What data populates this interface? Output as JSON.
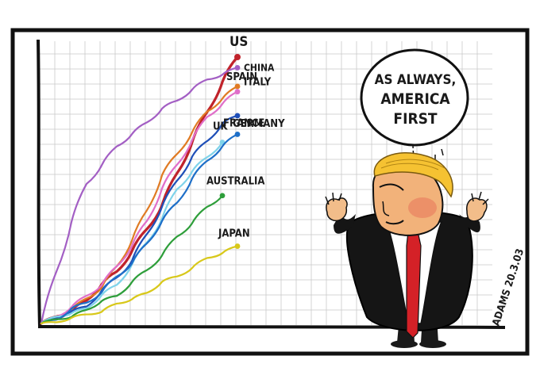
{
  "chart_data": {
    "type": "line",
    "title": "",
    "xlabel": "",
    "ylabel": "",
    "grid": true,
    "legend": "none (series labelled at line ends)",
    "series": [
      {
        "name": "US",
        "color": "#c0232b",
        "values": [
          0,
          2,
          5,
          9,
          14,
          20,
          27,
          35,
          45,
          56,
          68,
          80,
          90,
          100
        ]
      },
      {
        "name": "CHINA",
        "color": "#a35fc4",
        "values": [
          0,
          20,
          38,
          52,
          60,
          66,
          71,
          76,
          80,
          84,
          88,
          91,
          94,
          96
        ]
      },
      {
        "name": "SPAIN",
        "color": "#e07b24",
        "values": [
          0,
          2,
          5,
          9,
          14,
          21,
          31,
          43,
          55,
          64,
          72,
          79,
          85,
          89
        ]
      },
      {
        "name": "ITALY",
        "color": "#e06fc9",
        "values": [
          0,
          3,
          6,
          10,
          15,
          21,
          29,
          39,
          50,
          60,
          69,
          77,
          83,
          87
        ]
      },
      {
        "name": "GERMANY",
        "color": "#1f4fb8",
        "values": [
          0,
          2,
          4,
          7,
          12,
          17,
          24,
          33,
          44,
          54,
          62,
          69,
          75,
          78
        ]
      },
      {
        "name": "UK",
        "color": "#7fd3ea",
        "values": [
          0,
          2,
          4,
          6,
          10,
          15,
          22,
          30,
          40,
          50,
          57,
          63,
          68
        ]
      },
      {
        "name": "FRANCE",
        "color": "#1e6fc8",
        "values": [
          0,
          2,
          5,
          8,
          12,
          17,
          23,
          30,
          38,
          46,
          54,
          61,
          67,
          71
        ]
      },
      {
        "name": "AUSTRALIA",
        "color": "#2e9e3a",
        "values": [
          0,
          1,
          3,
          5,
          8,
          11,
          15,
          20,
          26,
          32,
          38,
          44,
          48
        ]
      },
      {
        "name": "JAPAN",
        "color": "#d8c81a",
        "values": [
          0,
          1,
          2,
          3,
          5,
          7,
          9,
          12,
          15,
          18,
          21,
          24,
          27,
          29
        ]
      }
    ]
  },
  "speech_bubble": {
    "lines": [
      "AS ALWAYS,",
      "AMERICA",
      "FIRST"
    ]
  },
  "artist_signature": "ADAMS 20.3.03"
}
